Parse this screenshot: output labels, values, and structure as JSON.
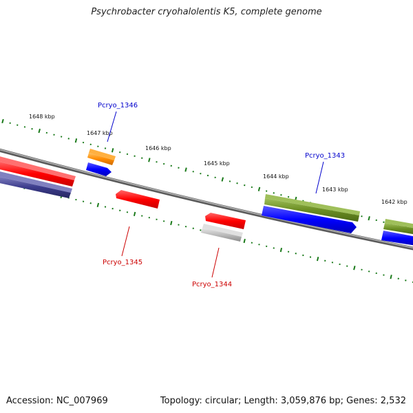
{
  "title": "Psychrobacter cryohalolentis K5, complete genome",
  "footer": {
    "accession": "Accession: NC_007969",
    "stats": "Topology: circular; Length: 3,059,876 bp; Genes: 2,532"
  },
  "kbp_ticks": [
    "1648 kbp",
    "1647 kbp",
    "1646 kbp",
    "1645 kbp",
    "1644 kbp",
    "1643 kbp",
    "1642 kbp"
  ],
  "gene_labels": {
    "pcryo_1346": "Pcryo_1346",
    "pcryo_1345": "Pcryo_1345",
    "pcryo_1344": "Pcryo_1344",
    "pcryo_1343": "Pcryo_1343"
  },
  "colors": {
    "backbone": "#8a8a8a",
    "tick_dots": "#1a7a1a",
    "red_feature": "#ff0000",
    "blue_feature": "#0000ff",
    "olive_feature": "#6b8e23",
    "orange_feature": "#ff8c00",
    "gray_feature": "#b8b8b8",
    "navy_feature": "#3c3c8c",
    "blue_label": "#0000cc",
    "red_label": "#cc0000"
  }
}
